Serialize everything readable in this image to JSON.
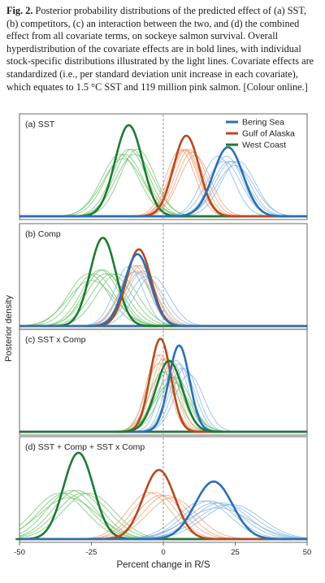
{
  "caption": {
    "label": "Fig. 2.",
    "text": "Posterior probability distributions of the predicted effect of (a) SST, (b) competitors, (c) an interaction between the two, and (d) the combined effect from all covariate terms, on sockeye salmon survival. Overall hyperdistribution of the covariate effects are in bold lines, with individual stock-specific distributions illustrated by the light lines. Covariate effects are standardized (i.e., per standard deviation unit increase in each covariate), which equates to 1.5 °C SST and 119 million pink salmon. [Colour online.]"
  },
  "chart_data": {
    "type": "line",
    "xlabel": "Percent change in R/S",
    "ylabel": "Posterior density",
    "xlim": [
      -50,
      50
    ],
    "xticks": [
      -50,
      -25,
      0,
      25,
      50
    ],
    "xtick_labels": [
      "-50",
      "-25",
      "0",
      "25",
      "50"
    ],
    "reference_line_x": 0,
    "legend": {
      "placement": "top-right",
      "entries": [
        {
          "name": "Bering Sea",
          "color": "#2b6fb6"
        },
        {
          "name": "Gulf of Alaska",
          "color": "#b54a22"
        },
        {
          "name": "West Coast",
          "color": "#1f7a35"
        }
      ]
    },
    "light_colors": {
      "Bering Sea": "#7fb3e0",
      "Gulf of Alaska": "#ef9d6f",
      "West Coast": "#6cc46a"
    },
    "panels": [
      {
        "label": "(a) SST",
        "series": [
          {
            "region": "West Coast",
            "mean": -12,
            "sd": 4.8,
            "peak_rel": 0.95,
            "stocks": {
              "means": [
                -15,
                -13.5,
                -12,
                -11,
                -10,
                -14,
                -9
              ],
              "sds": [
                6.5,
                6.5,
                6,
                6,
                6.5,
                7,
                6
              ]
            }
          },
          {
            "region": "Gulf of Alaska",
            "mean": 8,
            "sd": 4.5,
            "peak_rel": 0.84,
            "stocks": {
              "means": [
                6,
                7,
                8,
                9,
                10,
                11,
                7.5
              ],
              "sds": [
                5,
                5,
                5,
                5,
                5.2,
                5.5,
                5
              ]
            }
          },
          {
            "region": "Bering Sea",
            "mean": 22.5,
            "sd": 5.2,
            "peak_rel": 0.72,
            "stocks": {
              "means": [
                19,
                21,
                22,
                23,
                24,
                25,
                26
              ],
              "sds": [
                5.5,
                6,
                5.5,
                6,
                6,
                6.5,
                6
              ]
            }
          }
        ]
      },
      {
        "label": "(b) Comp",
        "series": [
          {
            "region": "West Coast",
            "mean": -21,
            "sd": 4.5,
            "peak_rel": 0.92,
            "stocks": {
              "means": [
                -26,
                -24,
                -22,
                -21,
                -20,
                -18,
                -16,
                -25
              ],
              "sds": [
                7,
                7,
                6.5,
                6.5,
                7,
                7,
                7,
                8
              ]
            }
          },
          {
            "region": "Gulf of Alaska",
            "mean": -8.5,
            "sd": 4.3,
            "peak_rel": 0.8,
            "stocks": {
              "means": [
                -10,
                -9,
                -8,
                -7,
                -9.5
              ],
              "sds": [
                5,
                5,
                5,
                5.5,
                5.5
              ]
            }
          },
          {
            "region": "Bering Sea",
            "mean": -9,
            "sd": 4.5,
            "peak_rel": 0.75,
            "stocks": {
              "means": [
                -12,
                -10,
                -8,
                -6,
                -4
              ],
              "sds": [
                5,
                5.5,
                5.5,
                6,
                6
              ]
            }
          }
        ]
      },
      {
        "label": "(c) SST x Comp",
        "series": [
          {
            "region": "Gulf of Alaska",
            "mean": -1,
            "sd": 3.6,
            "peak_rel": 0.97,
            "stocks": {
              "means": [
                -2,
                -1,
                0,
                1,
                -1.5
              ],
              "sds": [
                4,
                4,
                4.2,
                4.2,
                4.5
              ]
            }
          },
          {
            "region": "Bering Sea",
            "mean": 5.5,
            "sd": 3.6,
            "peak_rel": 0.9,
            "stocks": {
              "means": [
                3,
                4.5,
                5.5,
                6.5,
                7.5,
                9
              ],
              "sds": [
                4,
                4,
                4.2,
                4.5,
                4.5,
                5
              ]
            }
          },
          {
            "region": "West Coast",
            "mean": 2,
            "sd": 4.6,
            "peak_rel": 0.74,
            "stocks": {
              "means": [
                0,
                1.5,
                2.5,
                4,
                3
              ],
              "sds": [
                5,
                5,
                5.5,
                5.5,
                6
              ]
            }
          }
        ]
      },
      {
        "label": "(d) SST + Comp + SST x Comp",
        "series": [
          {
            "region": "West Coast",
            "mean": -29.5,
            "sd": 5.2,
            "peak_rel": 0.9,
            "stocks": {
              "means": [
                -36,
                -34,
                -32,
                -30,
                -28,
                -26,
                -33
              ],
              "sds": [
                9,
                9,
                8.5,
                8.5,
                9,
                9,
                10
              ]
            }
          },
          {
            "region": "Gulf of Alaska",
            "mean": -1.5,
            "sd": 5.5,
            "peak_rel": 0.72,
            "stocks": {
              "means": [
                -5,
                -3,
                -1,
                1,
                3
              ],
              "sds": [
                7.5,
                7.5,
                8,
                8,
                8.5
              ]
            }
          },
          {
            "region": "Bering Sea",
            "mean": 17.5,
            "sd": 6.5,
            "peak_rel": 0.6,
            "stocks": {
              "means": [
                14,
                16,
                18,
                20,
                22,
                24,
                19
              ],
              "sds": [
                9,
                9,
                9.5,
                9.5,
                10,
                10,
                11
              ]
            }
          }
        ]
      }
    ]
  }
}
